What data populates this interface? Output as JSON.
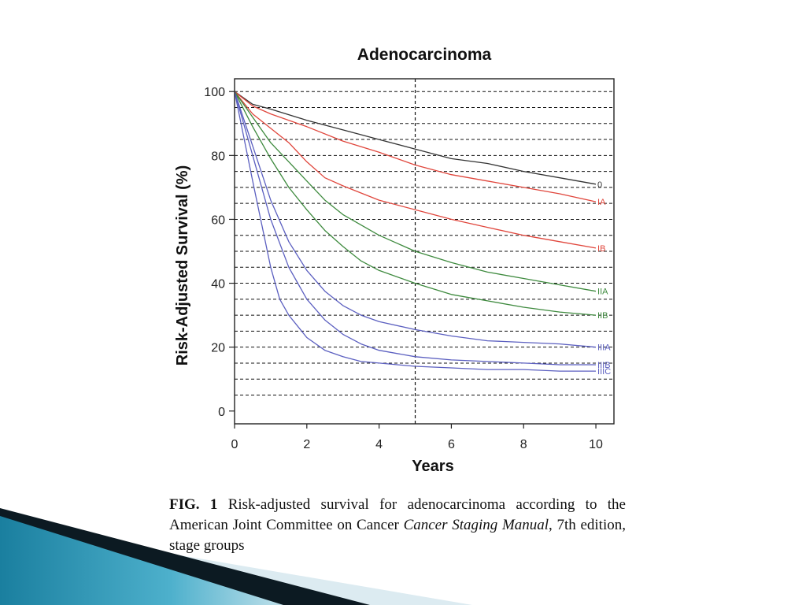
{
  "chart_data": {
    "type": "line",
    "title": "Adenocarcinoma",
    "xlabel": "Years",
    "ylabel": "Risk-Adjusted Survival (%)",
    "xlim": [
      0,
      10.5
    ],
    "ylim": [
      -4,
      104
    ],
    "xticks": [
      0,
      2,
      4,
      6,
      8,
      10
    ],
    "yticks": [
      0,
      20,
      40,
      60,
      80,
      100
    ],
    "grid": "horizontal dashed lines every 5%",
    "reference_line_x": 5,
    "legend": "inline labels at right end of each curve",
    "series": [
      {
        "name": "0",
        "color": "#333333",
        "x": [
          0,
          0.5,
          1,
          2,
          3,
          4,
          5,
          6,
          7,
          8,
          9,
          10
        ],
        "y": [
          100,
          96,
          94.5,
          91,
          88,
          85,
          82,
          79,
          77.5,
          75,
          73,
          71
        ]
      },
      {
        "name": "IA",
        "color": "#e0463c",
        "x": [
          0,
          0.5,
          1,
          2,
          3,
          4,
          5,
          6,
          7,
          8,
          9,
          10
        ],
        "y": [
          100,
          95.5,
          93,
          89,
          84.5,
          81,
          77,
          74,
          72,
          70,
          68,
          65.5
        ]
      },
      {
        "name": "IB",
        "color": "#e0463c",
        "x": [
          0,
          0.5,
          1,
          1.5,
          2,
          2.5,
          3,
          4,
          5,
          6,
          7,
          8,
          9,
          10
        ],
        "y": [
          100,
          93,
          88.5,
          84,
          78,
          73,
          70.5,
          66,
          63,
          60,
          57.5,
          55,
          53,
          51
        ]
      },
      {
        "name": "IIA",
        "color": "#3e8a3e",
        "x": [
          0,
          0.5,
          1,
          1.5,
          2,
          2.5,
          3,
          4,
          5,
          6,
          7,
          8,
          9,
          10
        ],
        "y": [
          100,
          92,
          84,
          78,
          72,
          66,
          61.5,
          55,
          50,
          46.5,
          43.5,
          41.5,
          39.5,
          37.5
        ]
      },
      {
        "name": "IIB",
        "color": "#3e8a3e",
        "x": [
          0,
          0.5,
          1,
          1.5,
          2,
          2.5,
          3,
          3.5,
          4,
          5,
          6,
          7,
          8,
          9,
          10
        ],
        "y": [
          100,
          89,
          79,
          70,
          63,
          56.5,
          51.5,
          47,
          44,
          40,
          36.5,
          34.5,
          32.5,
          31,
          30
        ]
      },
      {
        "name": "IIIA",
        "color": "#5b5fc0",
        "x": [
          0,
          0.5,
          1,
          1.5,
          2,
          2.5,
          3,
          3.5,
          4,
          5,
          6,
          7,
          8,
          9,
          10
        ],
        "y": [
          100,
          83,
          66,
          53,
          44,
          37.5,
          33,
          30,
          28,
          25.5,
          23.5,
          22,
          21.5,
          21,
          20
        ]
      },
      {
        "name": "IIIB",
        "color": "#5b5fc0",
        "x": [
          0,
          0.5,
          1,
          1.5,
          2,
          2.5,
          3,
          3.5,
          4,
          5,
          6,
          7,
          8,
          9,
          10
        ],
        "y": [
          100,
          80,
          60,
          45,
          35,
          28.5,
          24,
          21,
          19,
          17,
          16,
          15.5,
          15,
          14.5,
          14.5
        ]
      },
      {
        "name": "IIIC",
        "color": "#5b5fc0",
        "x": [
          0,
          0.5,
          1,
          1.25,
          1.5,
          2,
          2.5,
          3,
          3.5,
          4,
          5,
          6,
          7,
          8,
          9,
          10
        ],
        "y": [
          100,
          72,
          45,
          35,
          30,
          23,
          19,
          17,
          15.5,
          15,
          14,
          13.5,
          13,
          13,
          12.5,
          12.5
        ]
      }
    ]
  },
  "caption": {
    "fig": "FIG. 1",
    "text_before": " Risk-adjusted survival for adenocarcinoma according to the American Joint Committee on Cancer ",
    "italic": "Cancer Staging Manual",
    "text_after": ", 7th edition, stage groups"
  },
  "colors": {
    "axis": "#222222",
    "grid": "#111111",
    "accent_dark": "#0c1a22",
    "accent_teal": "#1f8bab",
    "accent_light": "#dcebf1"
  }
}
